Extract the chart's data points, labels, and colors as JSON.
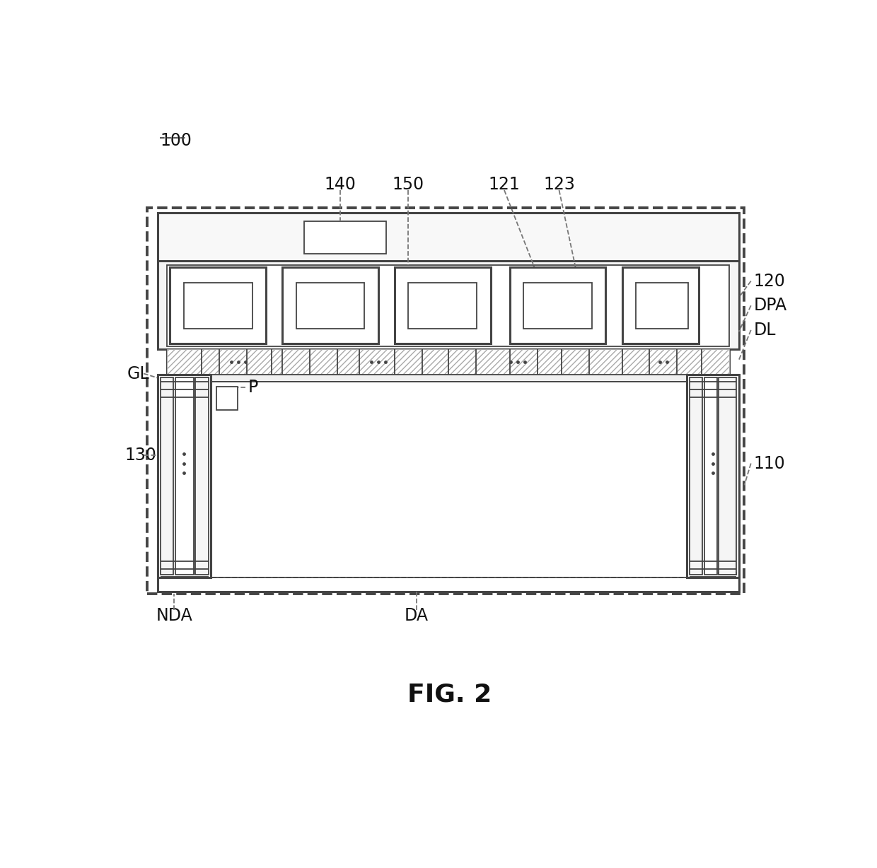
{
  "fig_label": "FIG. 2",
  "background_color": "#ffffff",
  "line_color": "#444444",
  "labels": {
    "100": "100",
    "110": "110",
    "120": "120",
    "121": "121",
    "123": "123",
    "130": "130",
    "140": "140",
    "150": "150",
    "GL": "GL",
    "DPA": "DPA",
    "DL": "DL",
    "P": "P",
    "NDA": "NDA",
    "DA": "DA"
  }
}
